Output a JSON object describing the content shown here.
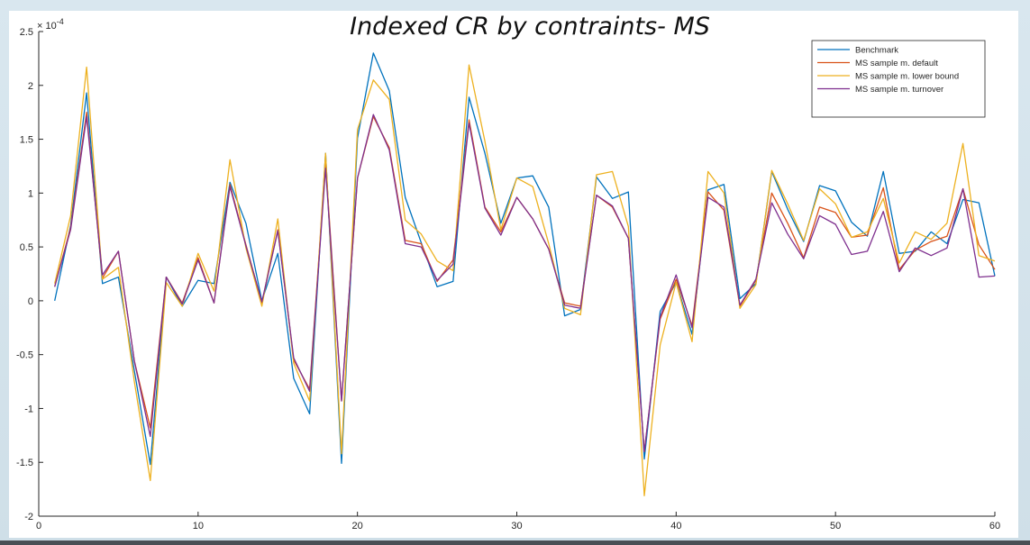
{
  "colors": {
    "background": "#d5e4ec",
    "panel": "#ffffff",
    "axis": "#262626"
  },
  "chart_data": {
    "type": "line",
    "title": "Indexed CR by contraints- MS",
    "xlabel": "",
    "ylabel": "",
    "y_multiplier_label": "× 10^-4",
    "xlim": [
      0,
      60
    ],
    "ylim": [
      -2,
      2.5
    ],
    "xticks": [
      0,
      10,
      20,
      30,
      40,
      50,
      60
    ],
    "yticks": [
      -2,
      -1.5,
      -1,
      -0.5,
      0,
      0.5,
      1,
      1.5,
      2,
      2.5
    ],
    "grid": false,
    "legend_position": "top-right",
    "x": [
      1,
      2,
      3,
      4,
      5,
      6,
      7,
      8,
      9,
      10,
      11,
      12,
      13,
      14,
      15,
      16,
      17,
      18,
      19,
      20,
      21,
      22,
      23,
      24,
      25,
      26,
      27,
      28,
      29,
      30,
      31,
      32,
      33,
      34,
      35,
      36,
      37,
      38,
      39,
      40,
      41,
      42,
      43,
      44,
      45,
      46,
      47,
      48,
      49,
      50,
      51,
      52,
      53,
      54,
      55,
      56,
      57,
      58,
      59,
      60
    ],
    "series": [
      {
        "name": "Benchmark",
        "color": "#0072bd",
        "values": [
          0.0,
          0.7,
          1.93,
          0.16,
          0.22,
          -0.65,
          -1.52,
          0.22,
          -0.05,
          0.19,
          0.16,
          1.1,
          0.72,
          0.0,
          0.44,
          -0.72,
          -1.05,
          1.37,
          -1.51,
          1.51,
          2.3,
          1.95,
          0.96,
          0.54,
          0.13,
          0.18,
          1.89,
          1.37,
          0.72,
          1.14,
          1.16,
          0.87,
          -0.14,
          -0.08,
          1.15,
          0.95,
          1.01,
          -1.47,
          -0.1,
          0.17,
          -0.31,
          1.03,
          1.08,
          0.02,
          0.16,
          1.2,
          0.85,
          0.55,
          1.07,
          1.02,
          0.73,
          0.6,
          1.2,
          0.44,
          0.46,
          0.64,
          0.53,
          0.94,
          0.91,
          0.23
        ]
      },
      {
        "name": "MS sample m. default",
        "color": "#d95319",
        "values": [
          0.13,
          0.68,
          1.75,
          0.21,
          0.46,
          -0.56,
          -1.18,
          0.22,
          -0.02,
          0.4,
          -0.02,
          1.08,
          0.52,
          -0.02,
          0.66,
          -0.55,
          -0.82,
          1.28,
          -0.93,
          1.14,
          1.71,
          1.42,
          0.56,
          0.53,
          0.18,
          0.38,
          1.68,
          0.87,
          0.64,
          0.96,
          0.76,
          0.48,
          -0.02,
          -0.05,
          0.98,
          0.87,
          0.58,
          -1.4,
          -0.17,
          0.2,
          -0.23,
          1.01,
          0.84,
          -0.05,
          0.19,
          1.0,
          0.72,
          0.4,
          0.87,
          0.82,
          0.59,
          0.61,
          1.05,
          0.29,
          0.47,
          0.55,
          0.6,
          1.04,
          0.52,
          0.29
        ]
      },
      {
        "name": "MS sample m. lower bound",
        "color": "#edb120",
        "values": [
          0.16,
          0.79,
          2.17,
          0.2,
          0.31,
          -0.75,
          -1.67,
          0.17,
          -0.05,
          0.44,
          0.09,
          1.31,
          0.49,
          -0.05,
          0.76,
          -0.58,
          -0.93,
          1.37,
          -1.42,
          1.59,
          2.05,
          1.87,
          0.75,
          0.62,
          0.37,
          0.28,
          2.19,
          1.48,
          0.66,
          1.14,
          1.06,
          0.53,
          -0.07,
          -0.13,
          1.17,
          1.2,
          0.69,
          -1.81,
          -0.41,
          0.17,
          -0.38,
          1.2,
          1.0,
          -0.07,
          0.15,
          1.21,
          0.9,
          0.56,
          1.04,
          0.9,
          0.59,
          0.64,
          0.95,
          0.35,
          0.64,
          0.57,
          0.72,
          1.46,
          0.42,
          0.37
        ]
      },
      {
        "name": "MS sample m. turnover",
        "color": "#7e2f8e",
        "values": [
          0.13,
          0.66,
          1.71,
          0.24,
          0.46,
          -0.56,
          -1.26,
          0.22,
          -0.03,
          0.38,
          -0.02,
          1.06,
          0.51,
          -0.01,
          0.65,
          -0.53,
          -0.84,
          1.23,
          -0.93,
          1.14,
          1.73,
          1.4,
          0.53,
          0.5,
          0.19,
          0.34,
          1.65,
          0.86,
          0.61,
          0.96,
          0.76,
          0.48,
          -0.04,
          -0.07,
          0.98,
          0.88,
          0.58,
          -1.4,
          -0.15,
          0.24,
          -0.25,
          0.96,
          0.87,
          -0.04,
          0.2,
          0.91,
          0.62,
          0.39,
          0.79,
          0.71,
          0.43,
          0.46,
          0.83,
          0.27,
          0.49,
          0.42,
          0.49,
          1.04,
          0.22,
          0.23
        ]
      }
    ]
  }
}
